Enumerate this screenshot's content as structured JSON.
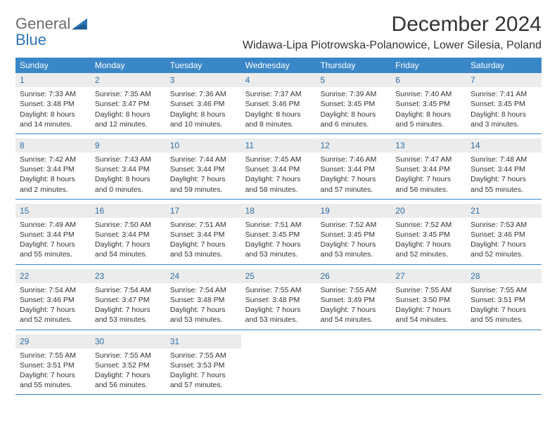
{
  "brand": {
    "line1": "General",
    "line2": "Blue"
  },
  "title": "December 2024",
  "location": "Widawa-Lipa Piotrowska-Polanowice, Lower Silesia, Poland",
  "colors": {
    "header_bar": "#3a87c8",
    "day_num_bg": "#ececec",
    "day_num_color": "#2e6fa6",
    "row_border": "#3a87c8",
    "brand_gray": "#6b6b6b",
    "brand_blue": "#2e77b8"
  },
  "dow": [
    "Sunday",
    "Monday",
    "Tuesday",
    "Wednesday",
    "Thursday",
    "Friday",
    "Saturday"
  ],
  "weeks": [
    [
      {
        "num": "1",
        "sunrise": "Sunrise: 7:33 AM",
        "sunset": "Sunset: 3:48 PM",
        "day1": "Daylight: 8 hours",
        "day2": "and 14 minutes."
      },
      {
        "num": "2",
        "sunrise": "Sunrise: 7:35 AM",
        "sunset": "Sunset: 3:47 PM",
        "day1": "Daylight: 8 hours",
        "day2": "and 12 minutes."
      },
      {
        "num": "3",
        "sunrise": "Sunrise: 7:36 AM",
        "sunset": "Sunset: 3:46 PM",
        "day1": "Daylight: 8 hours",
        "day2": "and 10 minutes."
      },
      {
        "num": "4",
        "sunrise": "Sunrise: 7:37 AM",
        "sunset": "Sunset: 3:46 PM",
        "day1": "Daylight: 8 hours",
        "day2": "and 8 minutes."
      },
      {
        "num": "5",
        "sunrise": "Sunrise: 7:39 AM",
        "sunset": "Sunset: 3:45 PM",
        "day1": "Daylight: 8 hours",
        "day2": "and 6 minutes."
      },
      {
        "num": "6",
        "sunrise": "Sunrise: 7:40 AM",
        "sunset": "Sunset: 3:45 PM",
        "day1": "Daylight: 8 hours",
        "day2": "and 5 minutes."
      },
      {
        "num": "7",
        "sunrise": "Sunrise: 7:41 AM",
        "sunset": "Sunset: 3:45 PM",
        "day1": "Daylight: 8 hours",
        "day2": "and 3 minutes."
      }
    ],
    [
      {
        "num": "8",
        "sunrise": "Sunrise: 7:42 AM",
        "sunset": "Sunset: 3:44 PM",
        "day1": "Daylight: 8 hours",
        "day2": "and 2 minutes."
      },
      {
        "num": "9",
        "sunrise": "Sunrise: 7:43 AM",
        "sunset": "Sunset: 3:44 PM",
        "day1": "Daylight: 8 hours",
        "day2": "and 0 minutes."
      },
      {
        "num": "10",
        "sunrise": "Sunrise: 7:44 AM",
        "sunset": "Sunset: 3:44 PM",
        "day1": "Daylight: 7 hours",
        "day2": "and 59 minutes."
      },
      {
        "num": "11",
        "sunrise": "Sunrise: 7:45 AM",
        "sunset": "Sunset: 3:44 PM",
        "day1": "Daylight: 7 hours",
        "day2": "and 58 minutes."
      },
      {
        "num": "12",
        "sunrise": "Sunrise: 7:46 AM",
        "sunset": "Sunset: 3:44 PM",
        "day1": "Daylight: 7 hours",
        "day2": "and 57 minutes."
      },
      {
        "num": "13",
        "sunrise": "Sunrise: 7:47 AM",
        "sunset": "Sunset: 3:44 PM",
        "day1": "Daylight: 7 hours",
        "day2": "and 56 minutes."
      },
      {
        "num": "14",
        "sunrise": "Sunrise: 7:48 AM",
        "sunset": "Sunset: 3:44 PM",
        "day1": "Daylight: 7 hours",
        "day2": "and 55 minutes."
      }
    ],
    [
      {
        "num": "15",
        "sunrise": "Sunrise: 7:49 AM",
        "sunset": "Sunset: 3:44 PM",
        "day1": "Daylight: 7 hours",
        "day2": "and 55 minutes."
      },
      {
        "num": "16",
        "sunrise": "Sunrise: 7:50 AM",
        "sunset": "Sunset: 3:44 PM",
        "day1": "Daylight: 7 hours",
        "day2": "and 54 minutes."
      },
      {
        "num": "17",
        "sunrise": "Sunrise: 7:51 AM",
        "sunset": "Sunset: 3:44 PM",
        "day1": "Daylight: 7 hours",
        "day2": "and 53 minutes."
      },
      {
        "num": "18",
        "sunrise": "Sunrise: 7:51 AM",
        "sunset": "Sunset: 3:45 PM",
        "day1": "Daylight: 7 hours",
        "day2": "and 53 minutes."
      },
      {
        "num": "19",
        "sunrise": "Sunrise: 7:52 AM",
        "sunset": "Sunset: 3:45 PM",
        "day1": "Daylight: 7 hours",
        "day2": "and 53 minutes."
      },
      {
        "num": "20",
        "sunrise": "Sunrise: 7:52 AM",
        "sunset": "Sunset: 3:45 PM",
        "day1": "Daylight: 7 hours",
        "day2": "and 52 minutes."
      },
      {
        "num": "21",
        "sunrise": "Sunrise: 7:53 AM",
        "sunset": "Sunset: 3:46 PM",
        "day1": "Daylight: 7 hours",
        "day2": "and 52 minutes."
      }
    ],
    [
      {
        "num": "22",
        "sunrise": "Sunrise: 7:54 AM",
        "sunset": "Sunset: 3:46 PM",
        "day1": "Daylight: 7 hours",
        "day2": "and 52 minutes."
      },
      {
        "num": "23",
        "sunrise": "Sunrise: 7:54 AM",
        "sunset": "Sunset: 3:47 PM",
        "day1": "Daylight: 7 hours",
        "day2": "and 53 minutes."
      },
      {
        "num": "24",
        "sunrise": "Sunrise: 7:54 AM",
        "sunset": "Sunset: 3:48 PM",
        "day1": "Daylight: 7 hours",
        "day2": "and 53 minutes."
      },
      {
        "num": "25",
        "sunrise": "Sunrise: 7:55 AM",
        "sunset": "Sunset: 3:48 PM",
        "day1": "Daylight: 7 hours",
        "day2": "and 53 minutes."
      },
      {
        "num": "26",
        "sunrise": "Sunrise: 7:55 AM",
        "sunset": "Sunset: 3:49 PM",
        "day1": "Daylight: 7 hours",
        "day2": "and 54 minutes."
      },
      {
        "num": "27",
        "sunrise": "Sunrise: 7:55 AM",
        "sunset": "Sunset: 3:50 PM",
        "day1": "Daylight: 7 hours",
        "day2": "and 54 minutes."
      },
      {
        "num": "28",
        "sunrise": "Sunrise: 7:55 AM",
        "sunset": "Sunset: 3:51 PM",
        "day1": "Daylight: 7 hours",
        "day2": "and 55 minutes."
      }
    ],
    [
      {
        "num": "29",
        "sunrise": "Sunrise: 7:55 AM",
        "sunset": "Sunset: 3:51 PM",
        "day1": "Daylight: 7 hours",
        "day2": "and 55 minutes."
      },
      {
        "num": "30",
        "sunrise": "Sunrise: 7:55 AM",
        "sunset": "Sunset: 3:52 PM",
        "day1": "Daylight: 7 hours",
        "day2": "and 56 minutes."
      },
      {
        "num": "31",
        "sunrise": "Sunrise: 7:55 AM",
        "sunset": "Sunset: 3:53 PM",
        "day1": "Daylight: 7 hours",
        "day2": "and 57 minutes."
      },
      null,
      null,
      null,
      null
    ]
  ]
}
